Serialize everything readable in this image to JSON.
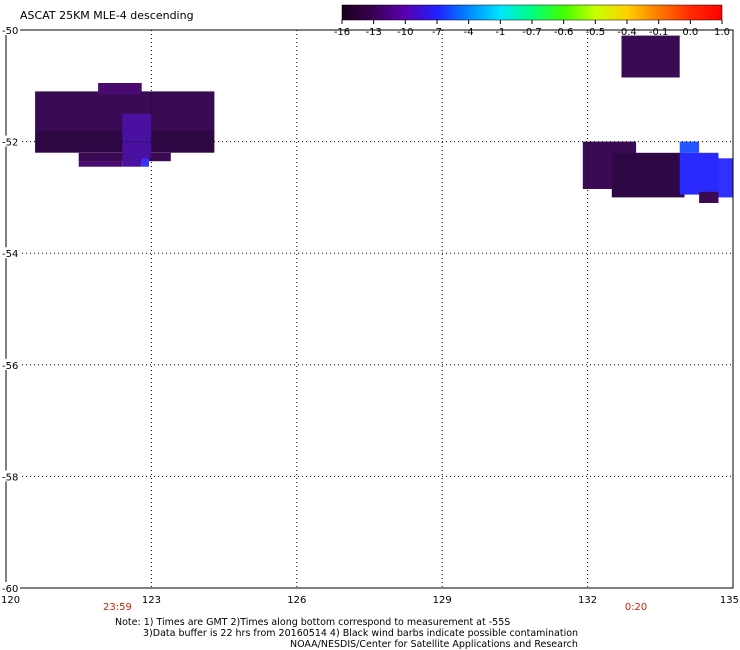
{
  "title": "ASCAT 25KM MLE-4 descending",
  "colorbar": {
    "ticks": [
      "-16",
      "-13",
      "-10",
      "-7",
      "-4",
      "-1",
      "-0.7",
      "-0.6",
      "-0.5",
      "-0.4",
      "-0.1",
      "0.0",
      "1.0"
    ],
    "stops": [
      "#1a001a",
      "#3a0055",
      "#5a00b0",
      "#2020ff",
      "#0088ff",
      "#00e5ff",
      "#00ff80",
      "#40ff00",
      "#c8ff00",
      "#ffd000",
      "#ff7a00",
      "#ff2a00",
      "#ff0000"
    ]
  },
  "axes": {
    "lat_labels": [
      "-50",
      "-52",
      "-54",
      "-56",
      "-58",
      "-60"
    ],
    "lon_labels": [
      "120",
      "123",
      "126",
      "129",
      "132",
      "135"
    ],
    "lon_range": [
      120,
      135
    ],
    "lat_range": [
      -50,
      -60
    ]
  },
  "times": [
    {
      "text": "23:59",
      "lon": 122.3
    },
    {
      "text": "0:20",
      "lon": 133.0
    }
  ],
  "time_color": "#cc2200",
  "notes": {
    "line1": "Note: 1) Times are GMT 2)Times along bottom correspond to measurement at -55S",
    "line2": "3)Data buffer is 22 hrs from 20160514 4) Black wind barbs indicate possible contamination",
    "line3": "NOAA/NESDIS/Center for Satellite Applications and Research"
  },
  "chart_data": {
    "type": "heatmap",
    "title": "ASCAT 25KM MLE-4 descending",
    "x_label": "",
    "y_label": "",
    "xlim": [
      120,
      135
    ],
    "ylim": [
      -60,
      -50
    ],
    "cells": [
      {
        "lon0": 120.6,
        "lon1": 124.3,
        "lat0": -51.1,
        "lat1": -51.8,
        "color": "#3a0a55"
      },
      {
        "lon0": 120.6,
        "lon1": 124.3,
        "lat0": -51.8,
        "lat1": -52.2,
        "color": "#2e0845"
      },
      {
        "lon0": 121.5,
        "lon1": 123.4,
        "lat0": -52.2,
        "lat1": -52.35,
        "color": "#3a0a55"
      },
      {
        "lon0": 121.9,
        "lon1": 122.8,
        "lat0": -50.95,
        "lat1": -51.15,
        "color": "#4a0a70"
      },
      {
        "lon0": 121.5,
        "lon1": 122.4,
        "lat0": -52.35,
        "lat1": -52.45,
        "color": "#4a0a70"
      },
      {
        "lon0": 122.4,
        "lon1": 123.0,
        "lat0": -51.5,
        "lat1": -52.3,
        "color": "#4a10a0"
      },
      {
        "lon0": 122.4,
        "lon1": 122.8,
        "lat0": -52.3,
        "lat1": -52.45,
        "color": "#4a10a0"
      },
      {
        "lon0": 122.8,
        "lon1": 122.95,
        "lat0": -52.3,
        "lat1": -52.45,
        "color": "#3a30ff"
      },
      {
        "lon0": 132.7,
        "lon1": 133.9,
        "lat0": -50.1,
        "lat1": -50.85,
        "color": "#3a0a55"
      },
      {
        "lon0": 131.9,
        "lon1": 133.0,
        "lat0": -52.0,
        "lat1": -52.85,
        "color": "#3a0a55"
      },
      {
        "lon0": 132.5,
        "lon1": 134.0,
        "lat0": -52.2,
        "lat1": -53.0,
        "color": "#2e0845"
      },
      {
        "lon0": 133.9,
        "lon1": 134.3,
        "lat0": -52.0,
        "lat1": -52.2,
        "color": "#2255ff"
      },
      {
        "lon0": 133.9,
        "lon1": 134.7,
        "lat0": -52.2,
        "lat1": -52.95,
        "color": "#2a2aff"
      },
      {
        "lon0": 134.7,
        "lon1": 135.0,
        "lat0": -52.3,
        "lat1": -53.0,
        "color": "#3030ff"
      },
      {
        "lon0": 134.3,
        "lon1": 134.7,
        "lat0": -52.9,
        "lat1": -53.1,
        "color": "#3a0a55"
      }
    ]
  }
}
